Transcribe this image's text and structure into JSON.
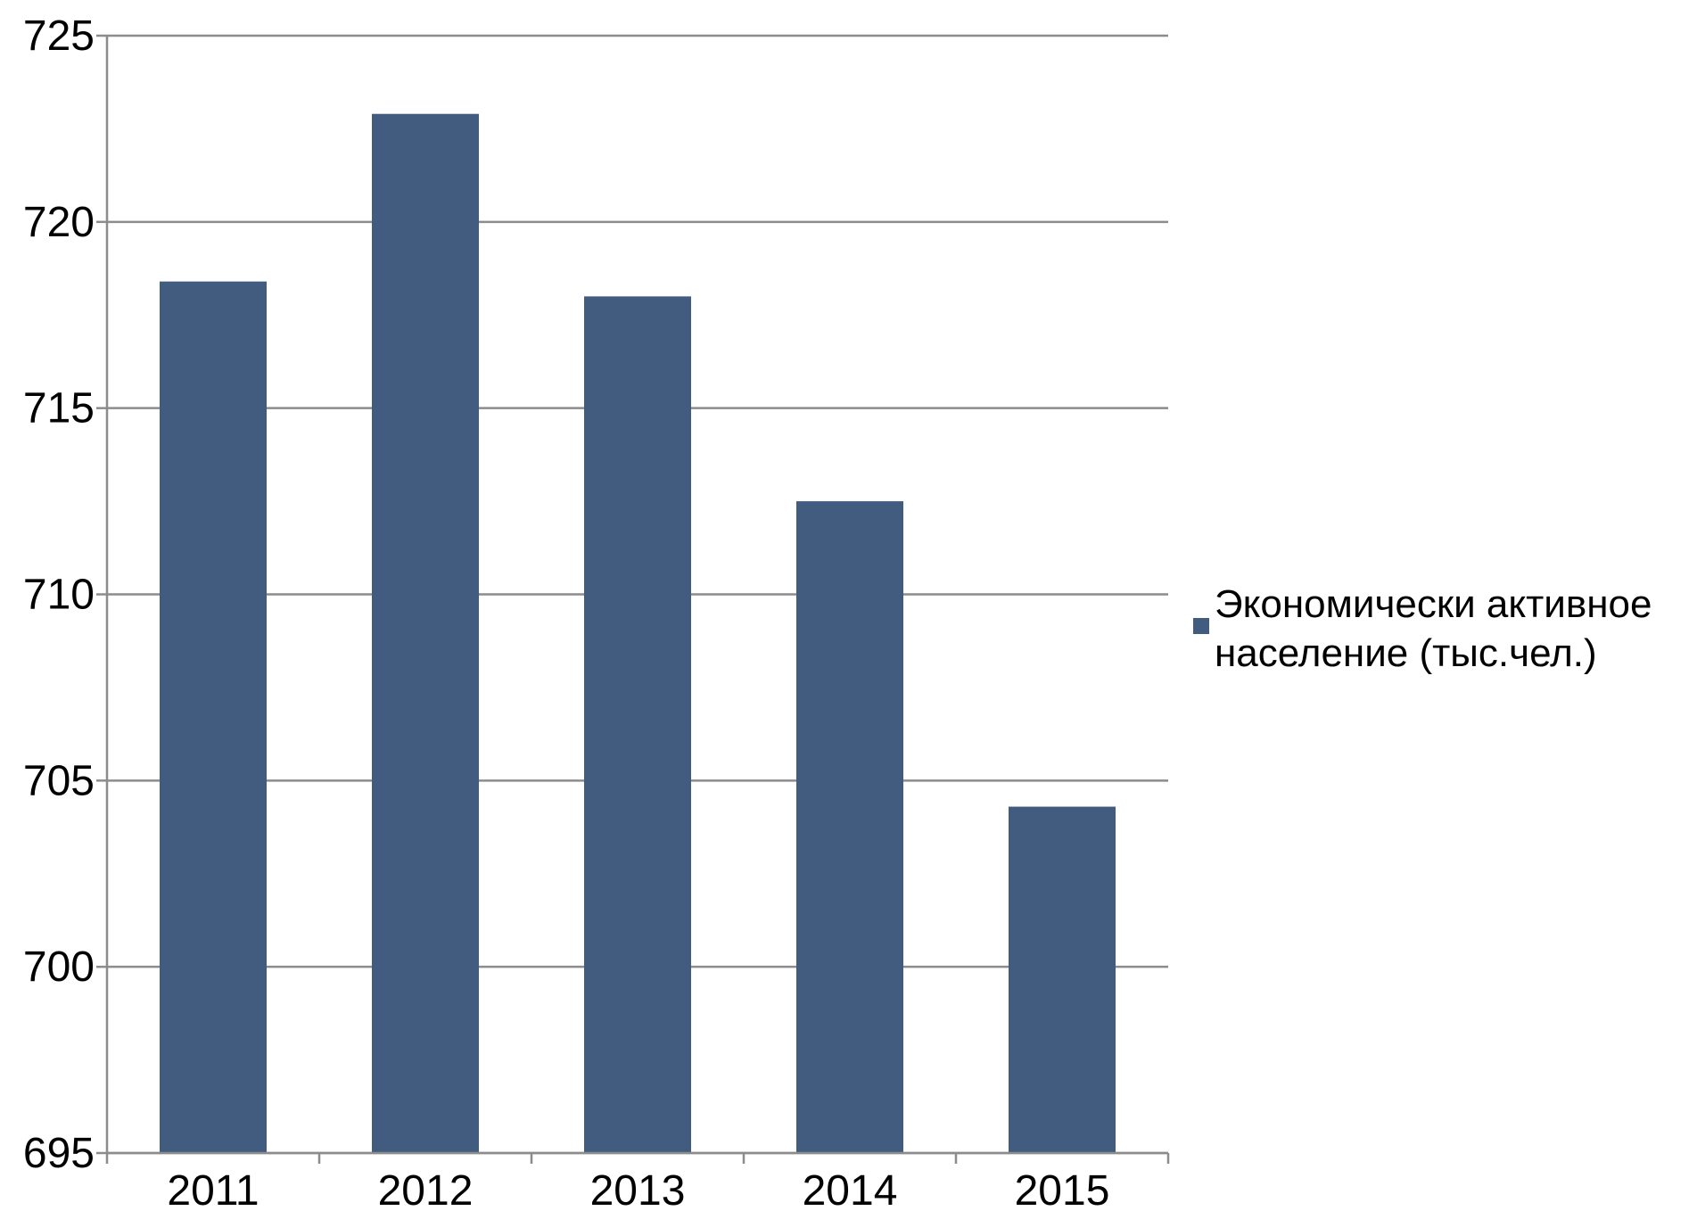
{
  "chart_data": {
    "type": "bar",
    "categories": [
      "2011",
      "2012",
      "2013",
      "2014",
      "2015"
    ],
    "series": [
      {
        "name": "Экономически активное население (тыс.чел.)",
        "color": "#425c7f",
        "values": [
          718.4,
          722.9,
          718.0,
          712.5,
          704.3
        ]
      }
    ],
    "ylim": [
      695,
      725
    ],
    "yticks": [
      695,
      700,
      705,
      710,
      715,
      720,
      725
    ],
    "ytick_labels": [
      "695",
      "700",
      "705",
      "710",
      "715",
      "720",
      "725"
    ],
    "title": "",
    "xlabel": "",
    "ylabel": "",
    "grid": true,
    "legend_position": "right",
    "legend_lines": [
      "Экономически активное",
      "население (тыс.чел.)"
    ]
  }
}
